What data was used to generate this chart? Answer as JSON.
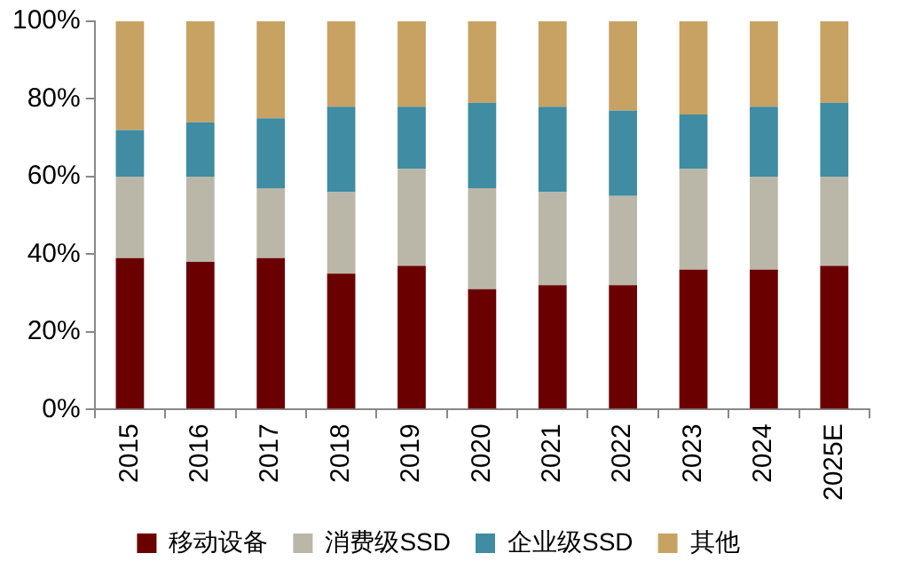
{
  "chart_data": {
    "type": "bar",
    "stacked": true,
    "categories": [
      "2015",
      "2016",
      "2017",
      "2018",
      "2019",
      "2020",
      "2021",
      "2022",
      "2023",
      "2024",
      "2025E"
    ],
    "series": [
      {
        "name": "移动设备",
        "color": "#6b0000",
        "values": [
          39,
          38,
          39,
          35,
          37,
          31,
          32,
          32,
          36,
          36,
          37
        ]
      },
      {
        "name": "消费级SSD",
        "color": "#bab7a8",
        "values": [
          21,
          22,
          18,
          21,
          25,
          26,
          24,
          23,
          26,
          24,
          23
        ]
      },
      {
        "name": "企业级SSD",
        "color": "#3f8ca3",
        "values": [
          12,
          14,
          18,
          22,
          16,
          22,
          22,
          22,
          14,
          18,
          19
        ]
      },
      {
        "name": "其他",
        "color": "#c8a262",
        "values": [
          28,
          26,
          25,
          22,
          22,
          21,
          22,
          23,
          24,
          22,
          21
        ]
      }
    ],
    "ylim": [
      0,
      100
    ],
    "yticks": [
      {
        "value": 0,
        "label": "0%"
      },
      {
        "value": 20,
        "label": "20%"
      },
      {
        "value": 40,
        "label": "40%"
      },
      {
        "value": 60,
        "label": "60%"
      },
      {
        "value": 80,
        "label": "80%"
      },
      {
        "value": 100,
        "label": "100%"
      }
    ],
    "grid": false,
    "legend": "bottom"
  }
}
